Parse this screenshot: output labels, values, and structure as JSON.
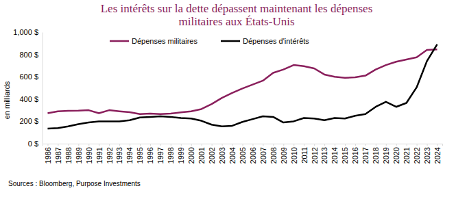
{
  "chart_data": {
    "type": "line",
    "title": "Les intérêts sur la dette dépassent maintenant les dépenses militaires aux États-Unis",
    "y_label": "en milliards",
    "annotations": [
      "Sources : Bloomberg, Purpose Investments"
    ],
    "categories": [
      "1986",
      "1987",
      "1988",
      "1989",
      "1990",
      "1991",
      "1992",
      "1993",
      "1994",
      "1995",
      "1996",
      "1997",
      "1998",
      "1999",
      "2000",
      "2001",
      "2002",
      "2003",
      "2004",
      "2005",
      "2006",
      "2007",
      "2008",
      "2009",
      "2010",
      "2011",
      "2012",
      "2013",
      "2014",
      "2015",
      "2016",
      "2017",
      "2018",
      "2019",
      "2020",
      "2021",
      "2022",
      "2023",
      "2024"
    ],
    "series": [
      {
        "name": "Dépenses militaires",
        "color": "#8a1f5c",
        "values": [
          273,
          290,
          295,
          296,
          300,
          273,
          300,
          290,
          282,
          265,
          270,
          265,
          270,
          280,
          290,
          310,
          355,
          410,
          455,
          495,
          530,
          565,
          635,
          665,
          705,
          695,
          675,
          620,
          600,
          590,
          595,
          610,
          665,
          705,
          735,
          755,
          775,
          840,
          845
        ]
      },
      {
        "name": "Dépenses d'intérêts",
        "color": "#000000",
        "values": [
          135,
          140,
          155,
          175,
          190,
          200,
          200,
          200,
          210,
          235,
          240,
          245,
          240,
          230,
          225,
          205,
          170,
          155,
          160,
          195,
          220,
          245,
          240,
          190,
          200,
          230,
          225,
          210,
          230,
          225,
          250,
          265,
          330,
          375,
          330,
          365,
          505,
          740,
          890
        ]
      }
    ],
    "ylim": [
      0,
      1000
    ],
    "yticks": [
      {
        "value": 0,
        "label": "0 $"
      },
      {
        "value": 200,
        "label": "200 $"
      },
      {
        "value": 400,
        "label": "400 $"
      },
      {
        "value": 600,
        "label": "600 $"
      },
      {
        "value": 800,
        "label": "800 $"
      },
      {
        "value": 1000,
        "label": "1,000 $"
      }
    ],
    "grid": false,
    "legend": "top"
  }
}
